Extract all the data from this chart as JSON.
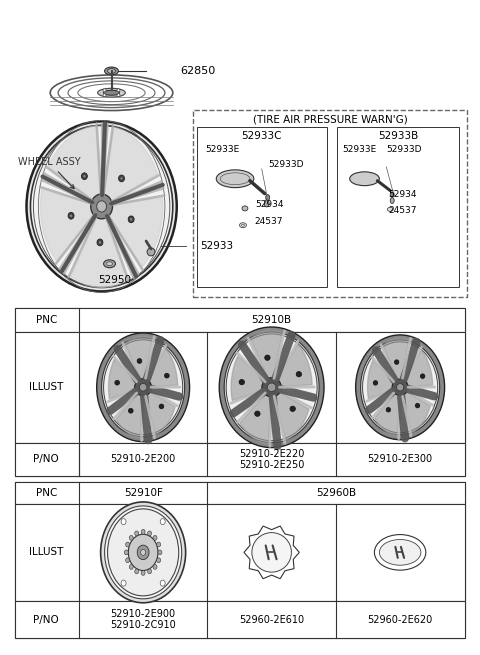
{
  "bg_color": "#ffffff",
  "tpms_title": "(TIRE AIR PRESSURE WARN'G)",
  "tpms_left_title": "52933C",
  "tpms_right_title": "52933B",
  "top_part": "62850",
  "wheel_label": "WHEEL ASSY",
  "part_52933": "52933",
  "part_52950": "52950",
  "table1_pnc": "52910B",
  "table1_parts": [
    "52910-2E200",
    "52910-2E220\n52910-2E250",
    "52910-2E300"
  ],
  "table2_pnc1": "52910F",
  "table2_pnc2": "52960B",
  "table2_parts": [
    "52910-2E900\n52910-2C910",
    "52960-2E610",
    "52960-2E620"
  ]
}
